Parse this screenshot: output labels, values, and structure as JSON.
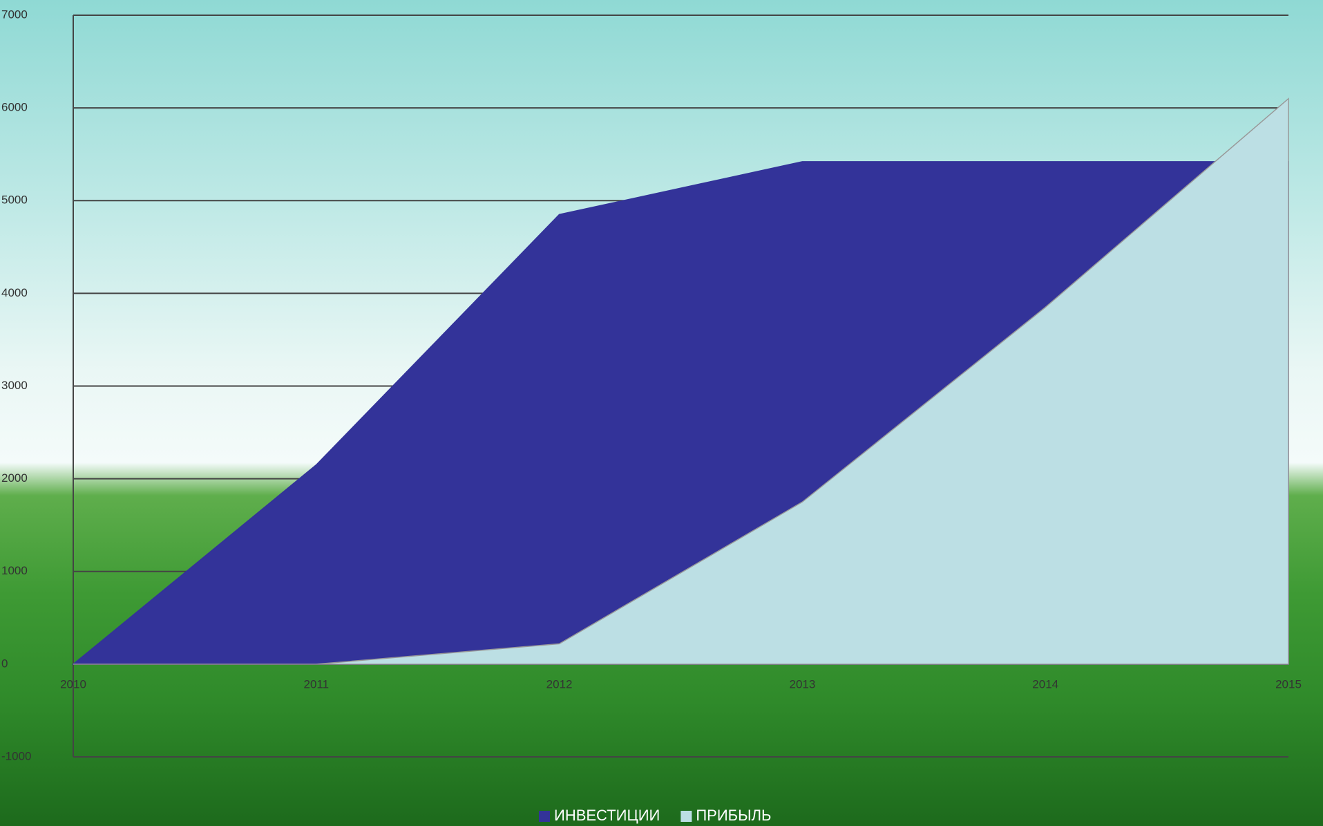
{
  "chart_data": {
    "type": "area",
    "categories": [
      "2010",
      "2011",
      "2012",
      "2013",
      "2014",
      "2015"
    ],
    "series": [
      {
        "name": "ИНВЕСТИЦИИ",
        "color": "#333399",
        "values": [
          0,
          2150,
          4850,
          5420,
          5420,
          5420
        ]
      },
      {
        "name": "ПРИБЫЛЬ",
        "color": "#bcdfe4",
        "values": [
          0,
          0,
          220,
          1750,
          3850,
          6100
        ]
      }
    ],
    "ylim": [
      -1000,
      7000
    ],
    "yticks": [
      -1000,
      0,
      1000,
      2000,
      3000,
      4000,
      5000,
      6000,
      7000
    ],
    "grid": true,
    "legend": "bottom"
  }
}
